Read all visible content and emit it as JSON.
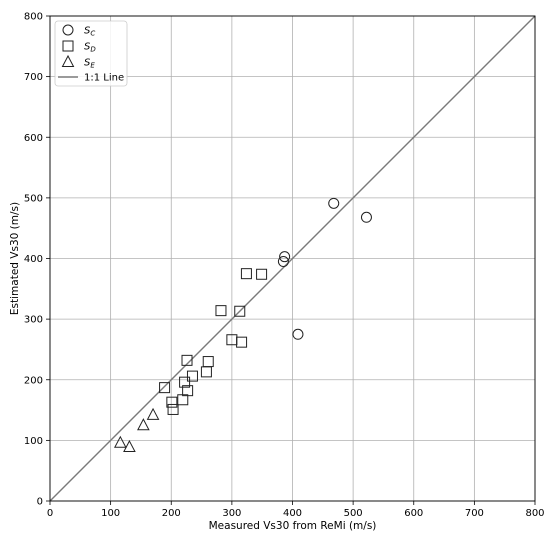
{
  "chart_data": {
    "type": "scatter",
    "xlabel": "Measured Vs30 from ReMi (m/s)",
    "ylabel": "Estimated Vs30 (m/s)",
    "xlim": [
      0,
      800
    ],
    "ylim": [
      0,
      800
    ],
    "xticks": [
      "0",
      "100",
      "200",
      "300",
      "400",
      "500",
      "600",
      "700",
      "800"
    ],
    "yticks": [
      "0",
      "100",
      "200",
      "300",
      "400",
      "500",
      "600",
      "700",
      "800"
    ],
    "grid": true,
    "legend_position": "top-left",
    "series": [
      {
        "name": "S",
        "subscript": "C",
        "marker": "circle",
        "points": [
          [
            385,
            395
          ],
          [
            387,
            403
          ],
          [
            409,
            275
          ],
          [
            468,
            491
          ],
          [
            522,
            468
          ]
        ]
      },
      {
        "name": "S",
        "subscript": "D",
        "marker": "square",
        "points": [
          [
            189,
            187
          ],
          [
            201,
            163
          ],
          [
            203,
            151
          ],
          [
            219,
            167
          ],
          [
            222,
            196
          ],
          [
            226,
            232
          ],
          [
            227,
            182
          ],
          [
            235,
            206
          ],
          [
            258,
            213
          ],
          [
            261,
            230
          ],
          [
            282,
            314
          ],
          [
            300,
            266
          ],
          [
            313,
            313
          ],
          [
            316,
            262
          ],
          [
            324,
            375
          ],
          [
            349,
            374
          ]
        ]
      },
      {
        "name": "S",
        "subscript": "E",
        "marker": "triangle",
        "points": [
          [
            116,
            96
          ],
          [
            131,
            89
          ],
          [
            154,
            125
          ],
          [
            170,
            142
          ]
        ]
      }
    ],
    "reference_line": {
      "name": "1:1 Line",
      "color": "#7a7a7a",
      "from": [
        0,
        0
      ],
      "to": [
        800,
        800
      ]
    }
  }
}
